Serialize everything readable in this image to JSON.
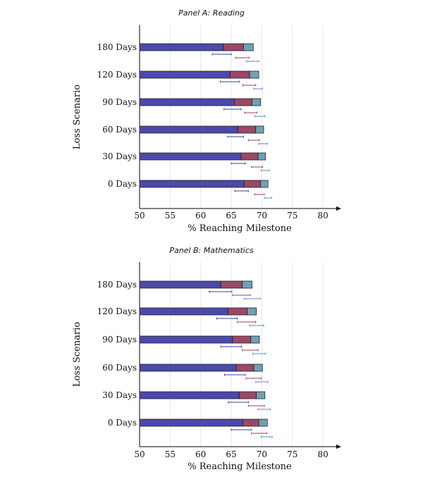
{
  "colors": {
    "segment1": "#4b49ab",
    "segment2": "#9a4868",
    "segment3": "#6fa2b6",
    "gridline": "#e8e8e8",
    "axis": "#000000",
    "errorbar1": "#3b3fb0",
    "errorbar2": "#a83a62",
    "errorbar3": "#4f8fd0"
  },
  "chart_data": [
    {
      "type": "bar",
      "orientation": "horizontal",
      "stacked": true,
      "title": "Panel A: Reading",
      "xlabel": "% Reaching Milestone",
      "ylabel": "Loss Scenario",
      "xlim": [
        50,
        80
      ],
      "xticks": [
        "50",
        "55",
        "60",
        "65",
        "70",
        "75",
        "80"
      ],
      "categories": [
        "180 Days",
        "120 Days",
        "90 Days",
        "60 Days",
        "30 Days",
        "0 Days"
      ],
      "segments": [
        [
          63.7,
          67.0,
          68.6
        ],
        [
          64.8,
          68.0,
          69.5
        ],
        [
          65.5,
          68.4,
          69.8
        ],
        [
          66.1,
          69.0,
          70.3
        ],
        [
          66.6,
          69.4,
          70.6
        ],
        [
          67.1,
          69.8,
          71.0
        ]
      ],
      "error_bars": [
        [
          [
            61.9,
            65.0
          ],
          [
            65.7,
            67.9
          ],
          [
            67.5,
            69.5
          ]
        ],
        [
          [
            63.2,
            66.3
          ],
          [
            66.9,
            69.0
          ],
          [
            68.7,
            70.1
          ]
        ],
        [
          [
            63.8,
            66.6
          ],
          [
            67.2,
            69.2
          ],
          [
            68.9,
            70.5
          ]
        ],
        [
          [
            64.4,
            67.0
          ],
          [
            67.8,
            69.6
          ],
          [
            69.5,
            70.9
          ]
        ],
        [
          [
            65.0,
            67.3
          ],
          [
            68.3,
            70.1
          ],
          [
            69.9,
            71.2
          ]
        ],
        [
          [
            65.6,
            67.8
          ],
          [
            68.8,
            70.4
          ],
          [
            70.4,
            71.6
          ]
        ]
      ]
    },
    {
      "type": "bar",
      "orientation": "horizontal",
      "stacked": true,
      "title": "Panel B: Mathematics",
      "xlabel": "% Reaching Milestone",
      "ylabel": "Loss Scenario",
      "xlim": [
        50,
        80
      ],
      "xticks": [
        "50",
        "55",
        "60",
        "65",
        "70",
        "75",
        "80"
      ],
      "categories": [
        "180 Days",
        "120 Days",
        "90 Days",
        "60 Days",
        "30 Days",
        "0 Days"
      ],
      "segments": [
        [
          63.3,
          66.8,
          68.4
        ],
        [
          64.5,
          67.6,
          69.1
        ],
        [
          65.2,
          68.2,
          69.6
        ],
        [
          65.8,
          68.7,
          70.1
        ],
        [
          66.3,
          69.1,
          70.5
        ],
        [
          66.9,
          69.5,
          70.9
        ]
      ],
      "error_bars": [
        [
          [
            61.4,
            65.1
          ],
          [
            65.2,
            68.1
          ],
          [
            67.1,
            69.8
          ]
        ],
        [
          [
            62.6,
            66.0
          ],
          [
            66.0,
            69.0
          ],
          [
            68.0,
            70.3
          ]
        ],
        [
          [
            63.3,
            66.7
          ],
          [
            66.8,
            69.4
          ],
          [
            68.5,
            70.6
          ]
        ],
        [
          [
            63.9,
            67.3
          ],
          [
            67.4,
            69.9
          ],
          [
            69.0,
            71.0
          ]
        ],
        [
          [
            64.5,
            67.8
          ],
          [
            67.8,
            70.4
          ],
          [
            69.4,
            71.4
          ]
        ],
        [
          [
            65.0,
            68.3
          ],
          [
            68.3,
            70.8
          ],
          [
            69.9,
            71.7
          ]
        ]
      ]
    }
  ]
}
